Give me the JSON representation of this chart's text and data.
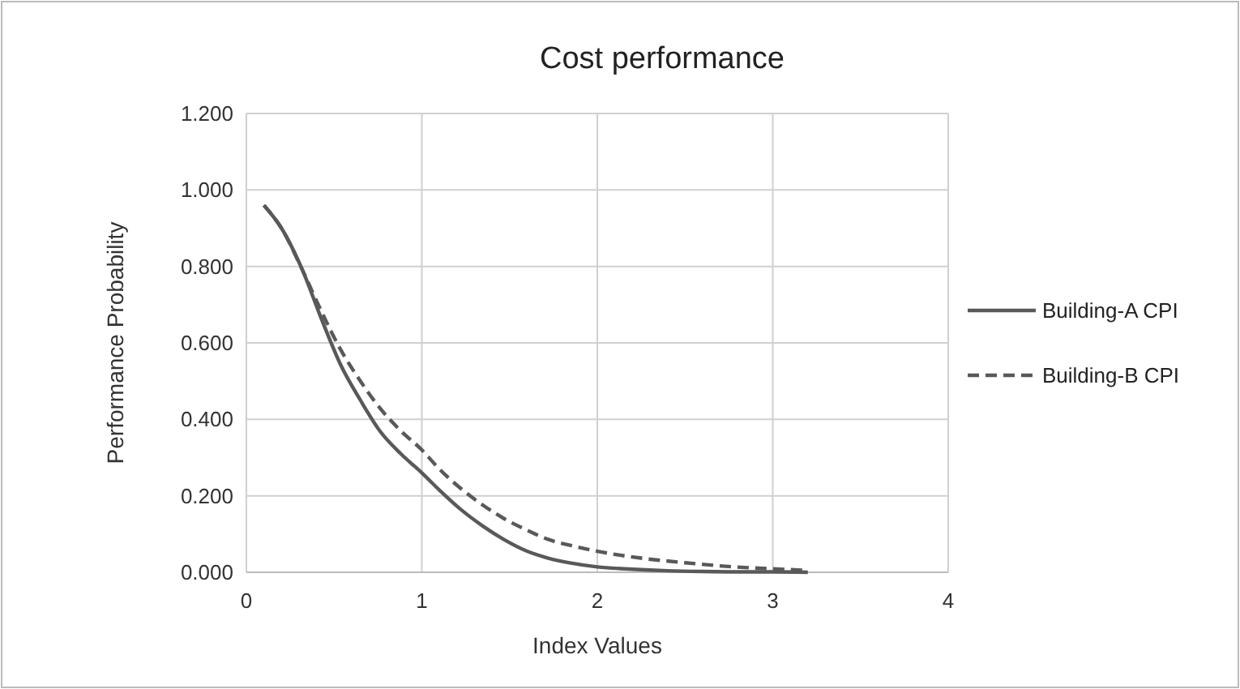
{
  "chart_data": {
    "type": "line",
    "title": "Cost performance",
    "xlabel": "Index Values",
    "ylabel": "Performance Probability",
    "xlim": [
      0,
      4
    ],
    "xticks": [
      0,
      1,
      2,
      3,
      4
    ],
    "ylim": [
      0,
      1.2
    ],
    "yticks": [
      {
        "value": 0,
        "label": "0.000"
      },
      {
        "value": 0.2,
        "label": "0.200"
      },
      {
        "value": 0.4,
        "label": "0.400"
      },
      {
        "value": 0.6,
        "label": "0.600"
      },
      {
        "value": 0.8,
        "label": "0.800"
      },
      {
        "value": 1,
        "label": "1.000"
      },
      {
        "value": 1.2,
        "label": "1.200"
      }
    ],
    "grid": true,
    "legend": "right",
    "marker": "none",
    "series": [
      {
        "name": "Building-A CPI",
        "color": "#595959",
        "line_style": "solid",
        "x": [
          0.1,
          0.2,
          0.32,
          0.43,
          0.54,
          0.65,
          0.76,
          0.88,
          1.0,
          1.1,
          1.22,
          1.35,
          1.47,
          1.6,
          1.72,
          1.85,
          2.0,
          2.2,
          2.4,
          2.6,
          2.8,
          3.0,
          3.2
        ],
        "values": [
          0.96,
          0.9,
          0.79,
          0.66,
          0.54,
          0.45,
          0.37,
          0.31,
          0.26,
          0.215,
          0.165,
          0.12,
          0.085,
          0.055,
          0.037,
          0.024,
          0.014,
          0.008,
          0.004,
          0.002,
          0.001,
          0.001,
          0
        ]
      },
      {
        "name": "Building-B CPI",
        "color": "#595959",
        "line_style": "dashed",
        "x": [
          0.1,
          0.2,
          0.32,
          0.43,
          0.54,
          0.65,
          0.76,
          0.88,
          1.0,
          1.1,
          1.22,
          1.35,
          1.47,
          1.6,
          1.72,
          1.85,
          2.0,
          2.25,
          2.5,
          2.75,
          3.0,
          3.2
        ],
        "values": [
          0.96,
          0.9,
          0.79,
          0.68,
          0.58,
          0.5,
          0.43,
          0.37,
          0.32,
          0.27,
          0.22,
          0.175,
          0.14,
          0.11,
          0.086,
          0.07,
          0.055,
          0.037,
          0.025,
          0.015,
          0.009,
          0.005
        ]
      }
    ]
  }
}
